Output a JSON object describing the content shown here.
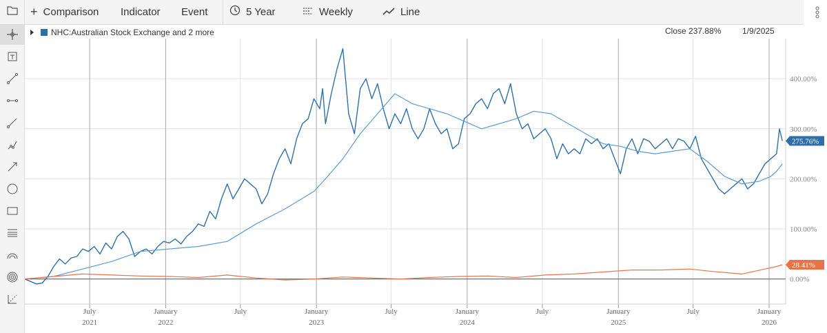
{
  "toolbar": {
    "comparison_label": "Comparison",
    "indicator_label": "Indicator",
    "event_label": "Event",
    "range_label": "5 Year",
    "interval_label": "Weekly",
    "charttype_label": "Line"
  },
  "sidebar": {
    "tools": [
      "crosshair-icon",
      "text-box-icon",
      "line-segment-icon",
      "horizontal-line-icon",
      "trend-line-icon",
      "polyline-icon",
      "arrow-line-icon",
      "circle-icon",
      "rectangle-icon",
      "fibonacci-icon",
      "arc-icon",
      "target-icon",
      "measure-icon"
    ]
  },
  "legend": {
    "label": "NHC:Australian Stock Exchange and 2 more"
  },
  "readout": {
    "close": "Close 237.88%",
    "date": "1/9/2025"
  },
  "chart_data": {
    "type": "line",
    "y_unit": "%",
    "ylim": [
      -50,
      480
    ],
    "xlim": [
      "2021-01-25",
      "2026-02-10"
    ],
    "yticks": [
      0,
      100,
      200,
      300,
      400
    ],
    "ytick_labels": [
      "0.00%",
      "100.00%",
      "200.00%",
      "300.00%",
      "400.00%"
    ],
    "xticks": [
      {
        "date": "2021-07-01",
        "label": "July",
        "year": "2021"
      },
      {
        "date": "2022-01-01",
        "label": "January",
        "year": "2022"
      },
      {
        "date": "2022-07-01",
        "label": "July",
        "year": ""
      },
      {
        "date": "2023-01-01",
        "label": "January",
        "year": "2023"
      },
      {
        "date": "2023-07-01",
        "label": "July",
        "year": ""
      },
      {
        "date": "2024-01-01",
        "label": "January",
        "year": "2024"
      },
      {
        "date": "2024-07-01",
        "label": "July",
        "year": ""
      },
      {
        "date": "2025-01-01",
        "label": "January",
        "year": "2025"
      },
      {
        "date": "2025-07-01",
        "label": "July",
        "year": ""
      },
      {
        "date": "2026-01-01",
        "label": "January",
        "year": "2026"
      }
    ],
    "grid": true,
    "badges": [
      {
        "series": 0,
        "label": "275.76%",
        "value": 275.76,
        "color": "#2f6fa8"
      },
      {
        "series": 2,
        "label": "28.41%",
        "value": 28.41,
        "color": "#e8734a"
      }
    ],
    "series": [
      {
        "color": "#2f6fa8",
        "points": [
          [
            "2021-01-25",
            0
          ],
          [
            "2021-02-08",
            -5
          ],
          [
            "2021-02-22",
            -10
          ],
          [
            "2021-03-08",
            -8
          ],
          [
            "2021-03-22",
            5
          ],
          [
            "2021-04-05",
            25
          ],
          [
            "2021-04-19",
            40
          ],
          [
            "2021-05-03",
            30
          ],
          [
            "2021-05-17",
            42
          ],
          [
            "2021-05-31",
            45
          ],
          [
            "2021-06-14",
            60
          ],
          [
            "2021-06-28",
            55
          ],
          [
            "2021-07-12",
            65
          ],
          [
            "2021-07-26",
            50
          ],
          [
            "2021-08-09",
            72
          ],
          [
            "2021-08-23",
            60
          ],
          [
            "2021-09-06",
            85
          ],
          [
            "2021-09-20",
            95
          ],
          [
            "2021-10-04",
            80
          ],
          [
            "2021-10-18",
            45
          ],
          [
            "2021-11-01",
            55
          ],
          [
            "2021-11-15",
            60
          ],
          [
            "2021-11-29",
            50
          ],
          [
            "2021-12-13",
            65
          ],
          [
            "2021-12-27",
            75
          ],
          [
            "2022-01-10",
            72
          ],
          [
            "2022-01-24",
            80
          ],
          [
            "2022-02-07",
            70
          ],
          [
            "2022-02-21",
            85
          ],
          [
            "2022-03-07",
            95
          ],
          [
            "2022-03-21",
            110
          ],
          [
            "2022-04-04",
            105
          ],
          [
            "2022-04-18",
            135
          ],
          [
            "2022-05-02",
            120
          ],
          [
            "2022-05-16",
            160
          ],
          [
            "2022-05-30",
            190
          ],
          [
            "2022-06-13",
            160
          ],
          [
            "2022-06-27",
            180
          ],
          [
            "2022-07-11",
            200
          ],
          [
            "2022-07-25",
            190
          ],
          [
            "2022-08-08",
            180
          ],
          [
            "2022-08-22",
            150
          ],
          [
            "2022-09-05",
            170
          ],
          [
            "2022-09-19",
            210
          ],
          [
            "2022-10-03",
            240
          ],
          [
            "2022-10-17",
            260
          ],
          [
            "2022-10-31",
            230
          ],
          [
            "2022-11-14",
            280
          ],
          [
            "2022-11-28",
            310
          ],
          [
            "2022-12-12",
            320
          ],
          [
            "2022-12-26",
            360
          ],
          [
            "2023-01-09",
            340
          ],
          [
            "2023-01-16",
            380
          ],
          [
            "2023-01-23",
            310
          ],
          [
            "2023-02-06",
            370
          ],
          [
            "2023-02-20",
            420
          ],
          [
            "2023-03-06",
            460
          ],
          [
            "2023-03-20",
            330
          ],
          [
            "2023-04-03",
            290
          ],
          [
            "2023-04-17",
            380
          ],
          [
            "2023-05-01",
            400
          ],
          [
            "2023-05-15",
            360
          ],
          [
            "2023-05-29",
            390
          ],
          [
            "2023-06-12",
            340
          ],
          [
            "2023-06-26",
            300
          ],
          [
            "2023-07-10",
            330
          ],
          [
            "2023-07-24",
            310
          ],
          [
            "2023-08-07",
            340
          ],
          [
            "2023-08-21",
            300
          ],
          [
            "2023-09-04",
            280
          ],
          [
            "2023-09-18",
            300
          ],
          [
            "2023-10-02",
            340
          ],
          [
            "2023-10-16",
            310
          ],
          [
            "2023-10-30",
            290
          ],
          [
            "2023-11-13",
            300
          ],
          [
            "2023-11-27",
            260
          ],
          [
            "2023-12-11",
            270
          ],
          [
            "2023-12-25",
            320
          ],
          [
            "2024-01-08",
            330
          ],
          [
            "2024-01-22",
            350
          ],
          [
            "2024-02-05",
            360
          ],
          [
            "2024-02-19",
            340
          ],
          [
            "2024-03-04",
            370
          ],
          [
            "2024-03-18",
            380
          ],
          [
            "2024-04-01",
            350
          ],
          [
            "2024-04-15",
            390
          ],
          [
            "2024-04-29",
            330
          ],
          [
            "2024-05-13",
            300
          ],
          [
            "2024-05-27",
            310
          ],
          [
            "2024-06-10",
            280
          ],
          [
            "2024-06-24",
            290
          ],
          [
            "2024-07-08",
            300
          ],
          [
            "2024-07-22",
            280
          ],
          [
            "2024-08-05",
            240
          ],
          [
            "2024-08-19",
            270
          ],
          [
            "2024-09-02",
            250
          ],
          [
            "2024-09-16",
            260
          ],
          [
            "2024-09-30",
            250
          ],
          [
            "2024-10-14",
            280
          ],
          [
            "2024-10-28",
            270
          ],
          [
            "2024-11-11",
            280
          ],
          [
            "2024-11-25",
            260
          ],
          [
            "2024-12-09",
            270
          ],
          [
            "2024-12-23",
            240
          ],
          [
            "2025-01-06",
            210
          ],
          [
            "2025-01-20",
            260
          ],
          [
            "2025-02-03",
            280
          ],
          [
            "2025-02-17",
            250
          ],
          [
            "2025-03-03",
            280
          ],
          [
            "2025-03-17",
            275
          ],
          [
            "2025-03-31",
            260
          ],
          [
            "2025-04-14",
            270
          ],
          [
            "2025-04-28",
            280
          ],
          [
            "2025-05-12",
            260
          ],
          [
            "2025-05-26",
            280
          ],
          [
            "2025-06-09",
            275
          ],
          [
            "2025-06-23",
            260
          ],
          [
            "2025-07-07",
            285
          ],
          [
            "2025-07-21",
            240
          ],
          [
            "2025-08-04",
            220
          ],
          [
            "2025-08-18",
            200
          ],
          [
            "2025-09-01",
            180
          ],
          [
            "2025-09-15",
            170
          ],
          [
            "2025-09-29",
            180
          ],
          [
            "2025-10-13",
            190
          ],
          [
            "2025-10-27",
            200
          ],
          [
            "2025-11-10",
            180
          ],
          [
            "2025-11-24",
            190
          ],
          [
            "2025-12-08",
            210
          ],
          [
            "2025-12-22",
            230
          ],
          [
            "2026-01-05",
            240
          ],
          [
            "2026-01-19",
            250
          ],
          [
            "2026-01-26",
            300
          ],
          [
            "2026-02-02",
            275.76
          ]
        ]
      },
      {
        "color": "#5b9bd5",
        "points": [
          [
            "2021-01-25",
            0
          ],
          [
            "2021-04-05",
            5
          ],
          [
            "2021-06-14",
            20
          ],
          [
            "2021-08-23",
            35
          ],
          [
            "2021-11-01",
            55
          ],
          [
            "2022-01-10",
            60
          ],
          [
            "2022-03-21",
            65
          ],
          [
            "2022-05-30",
            75
          ],
          [
            "2022-08-08",
            110
          ],
          [
            "2022-10-17",
            140
          ],
          [
            "2022-12-26",
            175
          ],
          [
            "2023-01-23",
            200
          ],
          [
            "2023-03-06",
            240
          ],
          [
            "2023-04-17",
            290
          ],
          [
            "2023-05-29",
            330
          ],
          [
            "2023-07-10",
            370
          ],
          [
            "2023-08-21",
            350
          ],
          [
            "2023-10-02",
            340
          ],
          [
            "2023-11-13",
            330
          ],
          [
            "2023-12-25",
            315
          ],
          [
            "2024-02-05",
            300
          ],
          [
            "2024-03-18",
            310
          ],
          [
            "2024-04-29",
            320
          ],
          [
            "2024-06-10",
            335
          ],
          [
            "2024-07-22",
            330
          ],
          [
            "2024-09-02",
            310
          ],
          [
            "2024-10-14",
            290
          ],
          [
            "2024-11-25",
            270
          ],
          [
            "2025-01-06",
            265
          ],
          [
            "2025-02-17",
            255
          ],
          [
            "2025-03-31",
            250
          ],
          [
            "2025-05-12",
            255
          ],
          [
            "2025-06-23",
            260
          ],
          [
            "2025-08-04",
            235
          ],
          [
            "2025-09-15",
            205
          ],
          [
            "2025-10-27",
            190
          ],
          [
            "2025-12-08",
            195
          ],
          [
            "2026-01-05",
            205
          ],
          [
            "2026-01-19",
            215
          ],
          [
            "2026-02-02",
            230
          ]
        ]
      },
      {
        "color": "#e8734a",
        "points": [
          [
            "2021-01-25",
            0
          ],
          [
            "2021-04-05",
            5
          ],
          [
            "2021-06-14",
            10
          ],
          [
            "2021-08-23",
            8
          ],
          [
            "2021-11-01",
            6
          ],
          [
            "2022-01-10",
            5
          ],
          [
            "2022-03-21",
            3
          ],
          [
            "2022-05-30",
            8
          ],
          [
            "2022-08-08",
            2
          ],
          [
            "2022-10-17",
            -2
          ],
          [
            "2022-12-26",
            0
          ],
          [
            "2023-03-06",
            4
          ],
          [
            "2023-05-15",
            2
          ],
          [
            "2023-07-24",
            0
          ],
          [
            "2023-10-02",
            3
          ],
          [
            "2023-12-11",
            5
          ],
          [
            "2024-02-19",
            6
          ],
          [
            "2024-04-29",
            3
          ],
          [
            "2024-07-08",
            8
          ],
          [
            "2024-09-16",
            10
          ],
          [
            "2024-11-25",
            14
          ],
          [
            "2025-02-03",
            18
          ],
          [
            "2025-04-14",
            18
          ],
          [
            "2025-06-23",
            20
          ],
          [
            "2025-08-18",
            15
          ],
          [
            "2025-10-27",
            10
          ],
          [
            "2025-12-22",
            20
          ],
          [
            "2026-01-19",
            25
          ],
          [
            "2026-02-02",
            28.41
          ]
        ]
      }
    ]
  }
}
